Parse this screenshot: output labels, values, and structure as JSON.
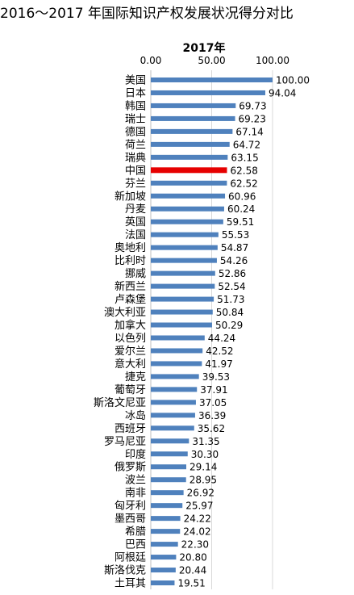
{
  "document": {
    "title": "2016～2017 年国际知识产权发展状况得分对比"
  },
  "chart_data": {
    "type": "bar",
    "orientation": "horizontal",
    "title": "2017年",
    "xlim": [
      0,
      100
    ],
    "x_ticks": [
      "0.00",
      "50.00",
      "100.00"
    ],
    "grid": true,
    "bar_color": "#4f81bd",
    "highlight_color": "#e60000",
    "highlight_category": "中国",
    "categories": [
      "美国",
      "日本",
      "韩国",
      "瑞士",
      "德国",
      "荷兰",
      "瑞典",
      "中国",
      "芬兰",
      "新加坡",
      "丹麦",
      "英国",
      "法国",
      "奥地利",
      "比利时",
      "挪威",
      "新西兰",
      "卢森堡",
      "澳大利亚",
      "加拿大",
      "以色列",
      "爱尔兰",
      "意大利",
      "捷克",
      "葡萄牙",
      "斯洛文尼亚",
      "冰岛",
      "西班牙",
      "罗马尼亚",
      "印度",
      "俄罗斯",
      "波兰",
      "南非",
      "匈牙利",
      "墨西哥",
      "希腊",
      "巴西",
      "阿根廷",
      "斯洛伐克",
      "土耳其"
    ],
    "values": [
      100.0,
      94.04,
      69.73,
      69.23,
      67.14,
      64.72,
      63.15,
      62.58,
      62.52,
      60.96,
      60.24,
      59.51,
      55.53,
      54.87,
      54.26,
      52.86,
      52.54,
      51.73,
      50.84,
      50.29,
      44.24,
      42.52,
      41.97,
      39.53,
      37.91,
      37.05,
      36.39,
      35.62,
      31.35,
      30.3,
      29.14,
      28.95,
      26.92,
      25.97,
      24.22,
      24.02,
      22.3,
      20.8,
      20.44,
      19.51
    ],
    "value_labels": [
      "100.00",
      "94.04",
      "69.73",
      "69.23",
      "67.14",
      "64.72",
      "63.15",
      "62.58",
      "62.52",
      "60.96",
      "60.24",
      "59.51",
      "55.53",
      "54.87",
      "54.26",
      "52.86",
      "52.54",
      "51.73",
      "50.84",
      "50.29",
      "44.24",
      "42.52",
      "41.97",
      "39.53",
      "37.91",
      "37.05",
      "36.39",
      "35.62",
      "31.35",
      "30.30",
      "29.14",
      "28.95",
      "26.92",
      "25.97",
      "24.22",
      "24.02",
      "22.30",
      "20.80",
      "20.44",
      "19.51"
    ]
  }
}
